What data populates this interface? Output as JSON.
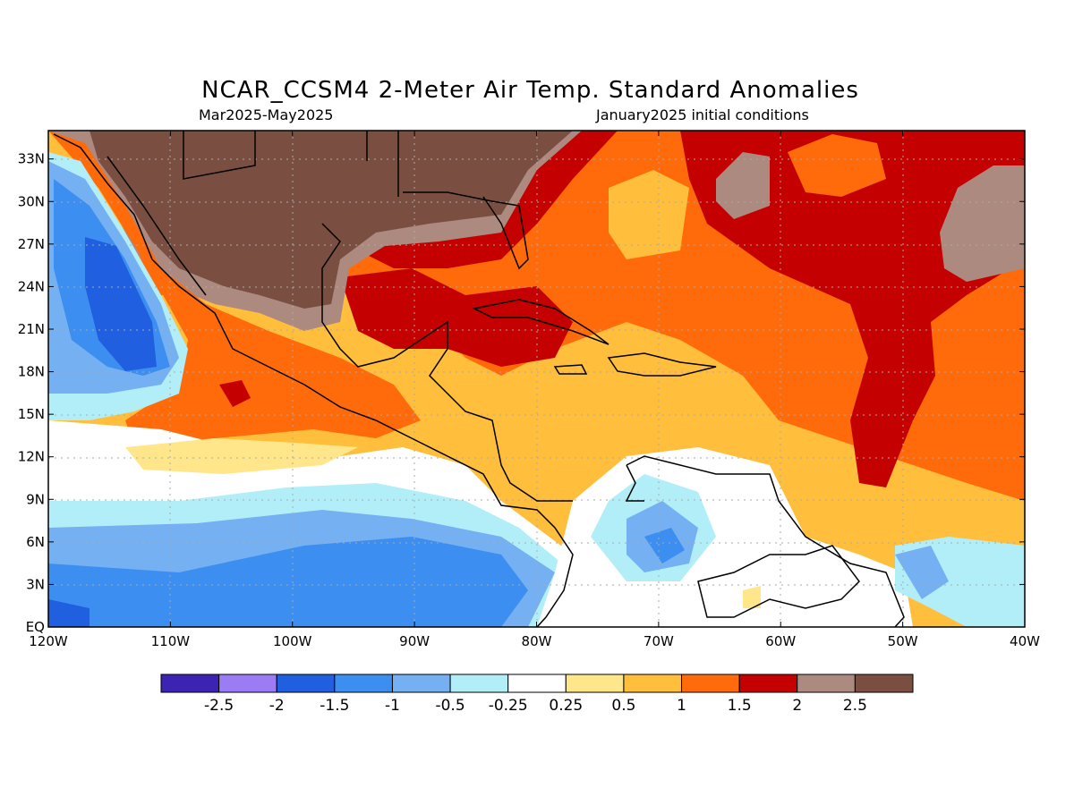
{
  "title": "NCAR_CCSM4 2-Meter Air Temp. Standard Anomalies",
  "subtitle_left": "Mar2025-May2025",
  "subtitle_right": "January2025 initial conditions",
  "map": {
    "lon_range": [
      -120,
      -40
    ],
    "lat_range": [
      0,
      35
    ],
    "lat_labels": [
      "EQ",
      "3N",
      "6N",
      "9N",
      "12N",
      "15N",
      "18N",
      "21N",
      "24N",
      "27N",
      "30N",
      "33N"
    ],
    "lon_labels": [
      "120W",
      "110W",
      "100W",
      "90W",
      "80W",
      "70W",
      "60W",
      "50W",
      "40W"
    ],
    "gridlines": true
  },
  "colorbar": {
    "colors": [
      "#3c23b4",
      "#9b7cf5",
      "#1f5fe0",
      "#3c8ef0",
      "#74b0f2",
      "#b2eef8",
      "#ffffff",
      "#ffe68a",
      "#ffbe3c",
      "#ff6a0a",
      "#c40000",
      "#ad8a80",
      "#7a4f42"
    ],
    "labels": [
      "-2.5",
      "-2",
      "-1.5",
      "-1",
      "-0.5",
      "-0.25",
      "0.25",
      "0.5",
      "1",
      "1.5",
      "2",
      "2.5"
    ]
  }
}
